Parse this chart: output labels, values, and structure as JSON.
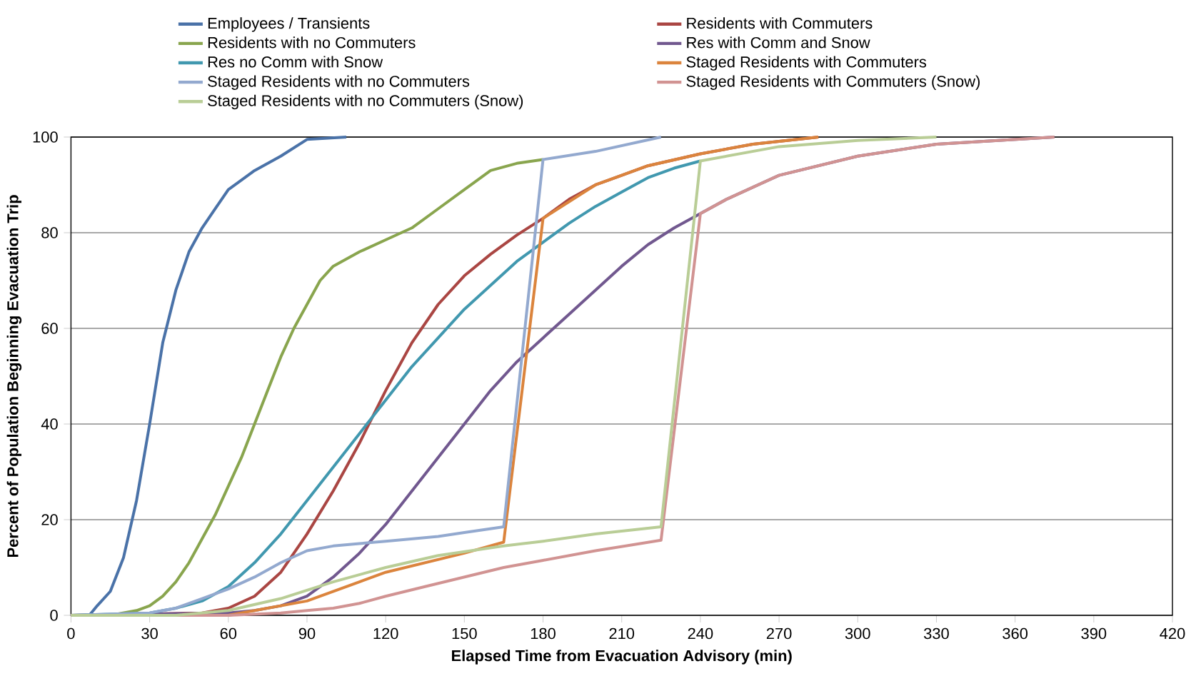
{
  "chart_data": {
    "type": "line",
    "xlabel": "Elapsed Time from Evacuation Advisory (min)",
    "ylabel": "Percent of Population Beginning Evacuation Trip",
    "xlim": [
      0,
      420
    ],
    "ylim": [
      0,
      100
    ],
    "xticks": [
      0,
      30,
      60,
      90,
      120,
      150,
      180,
      210,
      240,
      270,
      300,
      330,
      360,
      390,
      420
    ],
    "yticks": [
      0,
      20,
      40,
      60,
      80,
      100
    ],
    "grid": "y",
    "legend": "top",
    "series": [
      {
        "name": "Employees / Transients",
        "color": "#4a72a8",
        "x": [
          0,
          7,
          10,
          15,
          20,
          25,
          30,
          35,
          40,
          45,
          50,
          55,
          60,
          70,
          80,
          90,
          105
        ],
        "values": [
          0,
          0,
          2,
          5,
          12,
          24,
          40,
          57,
          68,
          76,
          81,
          85,
          89,
          93,
          96,
          99.5,
          100
        ]
      },
      {
        "name": "Residents with Commuters",
        "color": "#aa4643",
        "x": [
          0,
          50,
          60,
          70,
          80,
          90,
          100,
          110,
          120,
          130,
          140,
          150,
          160,
          170,
          180,
          190,
          200,
          210,
          220,
          240,
          260,
          285
        ],
        "values": [
          0,
          0.5,
          1.5,
          4,
          9,
          17,
          26,
          36,
          47,
          57,
          65,
          71,
          75.5,
          79.5,
          83,
          87,
          90,
          92,
          94,
          96.5,
          98.5,
          100
        ]
      },
      {
        "name": "Residents with no Commuters",
        "color": "#89a54e",
        "x": [
          0,
          15,
          25,
          30,
          35,
          40,
          45,
          50,
          55,
          60,
          65,
          70,
          75,
          80,
          85,
          90,
          95,
          100,
          110,
          120,
          130,
          140,
          150,
          160,
          170,
          180
        ],
        "values": [
          0,
          0,
          1,
          2,
          4,
          7,
          11,
          16,
          21,
          27,
          33,
          40,
          47,
          54,
          60,
          65,
          70,
          73,
          76,
          78.5,
          81,
          85,
          89,
          93,
          94.5,
          95.3
        ]
      },
      {
        "name": "Res with Comm and Snow",
        "color": "#71588f",
        "x": [
          0,
          60,
          70,
          80,
          90,
          100,
          110,
          120,
          130,
          140,
          150,
          160,
          170,
          180,
          190,
          200,
          210,
          220,
          230,
          240,
          250,
          270,
          300,
          330,
          375
        ],
        "values": [
          0,
          0.5,
          1,
          2,
          4,
          8,
          13,
          19,
          26,
          33,
          40,
          47,
          53,
          58,
          63,
          68,
          73,
          77.5,
          81,
          84,
          87,
          92,
          96,
          98.5,
          100
        ]
      },
      {
        "name": "Res no Comm with Snow",
        "color": "#4198af",
        "x": [
          0,
          30,
          40,
          50,
          60,
          70,
          80,
          90,
          100,
          110,
          120,
          130,
          140,
          150,
          160,
          170,
          180,
          190,
          200,
          210,
          220,
          230,
          240
        ],
        "values": [
          0,
          0.5,
          1.5,
          3,
          6,
          11,
          17,
          24,
          31,
          38,
          45,
          52,
          58,
          64,
          69,
          74,
          78,
          82,
          85.5,
          88.5,
          91.5,
          93.5,
          95
        ]
      },
      {
        "name": "Staged  Residents with Commuters",
        "color": "#db843d",
        "x": [
          0,
          60,
          90,
          100,
          110,
          120,
          150,
          165,
          180,
          200,
          220,
          240,
          260,
          285
        ],
        "values": [
          0,
          0,
          3,
          5,
          7,
          9,
          13,
          15.3,
          83,
          90,
          94,
          96.5,
          98.5,
          100
        ]
      },
      {
        "name": "Staged  Residents with no Commuters",
        "color": "#93a9cf",
        "x": [
          0,
          30,
          40,
          50,
          60,
          70,
          80,
          90,
          100,
          110,
          120,
          140,
          150,
          165,
          180,
          200,
          225
        ],
        "values": [
          0,
          0.5,
          1.5,
          3.5,
          5.5,
          8,
          11,
          13.5,
          14.5,
          15,
          15.5,
          16.5,
          17.3,
          18.5,
          95.3,
          97,
          100
        ]
      },
      {
        "name": "Staged  Residents with Commuters (Snow)",
        "color": "#d19392",
        "x": [
          0,
          60,
          80,
          90,
          100,
          110,
          120,
          135,
          150,
          165,
          180,
          200,
          225,
          240,
          250,
          270,
          300,
          330,
          375
        ],
        "values": [
          0,
          0,
          0.5,
          1,
          1.5,
          2.5,
          4,
          6,
          8,
          10,
          11.5,
          13.5,
          15.7,
          84,
          87,
          92,
          96,
          98.5,
          100
        ]
      },
      {
        "name": "Staged  Residents with no Commuters (Snow)",
        "color": "#b9cd96",
        "x": [
          0,
          40,
          60,
          80,
          100,
          120,
          140,
          165,
          180,
          200,
          225,
          240,
          270,
          300,
          330
        ],
        "values": [
          0,
          0,
          1,
          3.5,
          7,
          10,
          12.5,
          14.5,
          15.5,
          17,
          18.5,
          95,
          98,
          99.3,
          100
        ]
      }
    ]
  }
}
